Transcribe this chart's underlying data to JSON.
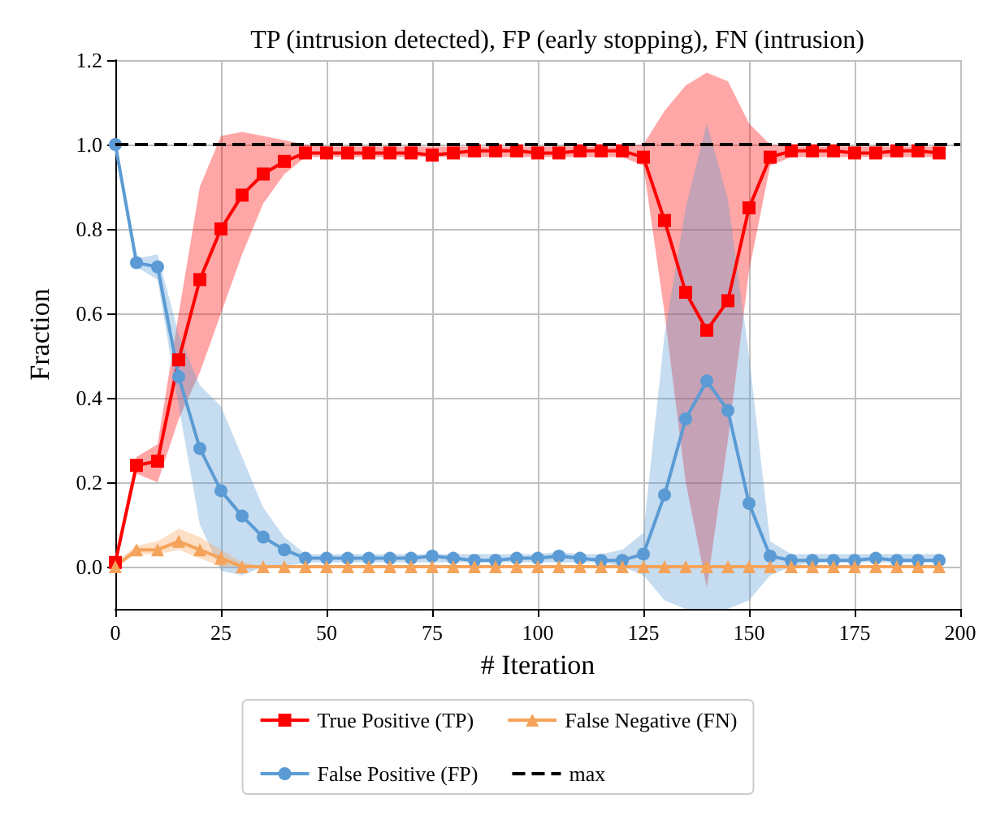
{
  "chart_data": {
    "type": "line",
    "title": "TP (intrusion detected), FP (early stopping), FN (intrusion)",
    "xlabel": "# Iteration",
    "ylabel": "Fraction",
    "x": [
      0,
      5,
      10,
      15,
      20,
      25,
      30,
      35,
      40,
      45,
      50,
      55,
      60,
      65,
      70,
      75,
      80,
      85,
      90,
      95,
      100,
      105,
      110,
      115,
      120,
      125,
      130,
      135,
      140,
      145,
      150,
      155,
      160,
      165,
      170,
      175,
      180,
      185,
      190,
      195
    ],
    "series": [
      {
        "name": "True Positive (TP)",
        "color": "#ff0000",
        "marker": "square",
        "values": [
          0.01,
          0.24,
          0.25,
          0.49,
          0.68,
          0.8,
          0.88,
          0.93,
          0.96,
          0.98,
          0.98,
          0.98,
          0.98,
          0.98,
          0.98,
          0.975,
          0.98,
          0.985,
          0.985,
          0.985,
          0.98,
          0.98,
          0.985,
          0.985,
          0.985,
          0.97,
          0.82,
          0.65,
          0.56,
          0.63,
          0.85,
          0.97,
          0.985,
          0.985,
          0.985,
          0.98,
          0.98,
          0.985,
          0.985,
          0.98
        ],
        "lower": [
          0,
          0.22,
          0.2,
          0.35,
          0.46,
          0.6,
          0.74,
          0.86,
          0.93,
          0.97,
          0.97,
          0.97,
          0.97,
          0.97,
          0.97,
          0.97,
          0.97,
          0.97,
          0.97,
          0.97,
          0.97,
          0.97,
          0.97,
          0.97,
          0.97,
          0.95,
          0.6,
          0.2,
          -0.05,
          0.3,
          0.7,
          0.95,
          0.97,
          0.97,
          0.97,
          0.97,
          0.97,
          0.97,
          0.97,
          0.97
        ],
        "upper": [
          0.03,
          0.26,
          0.29,
          0.6,
          0.9,
          1.02,
          1.03,
          1.02,
          1.01,
          1.0,
          0.995,
          0.995,
          0.995,
          0.995,
          0.995,
          0.995,
          0.995,
          0.995,
          0.995,
          0.995,
          0.995,
          0.995,
          0.995,
          0.995,
          0.995,
          1.0,
          1.08,
          1.14,
          1.17,
          1.15,
          1.05,
          1.0,
          0.995,
          0.995,
          0.995,
          0.995,
          0.995,
          0.995,
          0.995,
          0.995
        ]
      },
      {
        "name": "False Positive (FP)",
        "color": "#5b9bd5",
        "marker": "circle",
        "values": [
          1.0,
          0.72,
          0.71,
          0.45,
          0.28,
          0.18,
          0.12,
          0.07,
          0.04,
          0.02,
          0.02,
          0.02,
          0.02,
          0.02,
          0.02,
          0.025,
          0.02,
          0.015,
          0.015,
          0.02,
          0.02,
          0.025,
          0.02,
          0.015,
          0.015,
          0.03,
          0.17,
          0.35,
          0.44,
          0.37,
          0.15,
          0.025,
          0.015,
          0.015,
          0.015,
          0.015,
          0.02,
          0.015,
          0.015,
          0.015
        ],
        "lower": [
          0.99,
          0.71,
          0.68,
          0.38,
          0.1,
          -0.01,
          -0.02,
          0,
          0,
          0.01,
          0.01,
          0.01,
          0.01,
          0.01,
          0.01,
          0.01,
          0.01,
          0.01,
          0.01,
          0.01,
          0.01,
          0.01,
          0.01,
          0.01,
          0,
          -0.02,
          -0.08,
          -0.1,
          -0.1,
          -0.1,
          -0.08,
          -0.02,
          0,
          0.01,
          0.01,
          0.01,
          0.01,
          0.01,
          0.01,
          0.01
        ],
        "upper": [
          1.0,
          0.73,
          0.74,
          0.55,
          0.43,
          0.38,
          0.26,
          0.14,
          0.07,
          0.03,
          0.03,
          0.03,
          0.03,
          0.03,
          0.03,
          0.03,
          0.03,
          0.03,
          0.03,
          0.03,
          0.03,
          0.035,
          0.03,
          0.03,
          0.04,
          0.08,
          0.55,
          0.85,
          1.05,
          0.87,
          0.5,
          0.06,
          0.03,
          0.03,
          0.03,
          0.03,
          0.03,
          0.03,
          0.03,
          0.03
        ]
      },
      {
        "name": "False Negative (FN)",
        "color": "#f5a35a",
        "marker": "triangle",
        "values": [
          0,
          0.04,
          0.04,
          0.06,
          0.04,
          0.02,
          0,
          0,
          0,
          0,
          0,
          0,
          0,
          0,
          0,
          0,
          0,
          0,
          0,
          0,
          0,
          0,
          0,
          0,
          0,
          0,
          0,
          0,
          0,
          0,
          0,
          0,
          0,
          0,
          0,
          0,
          0,
          0,
          0,
          0
        ],
        "lower": [
          0,
          0.03,
          0.03,
          0.04,
          0.02,
          0,
          0,
          0,
          0,
          0,
          0,
          0,
          0,
          0,
          0,
          0,
          0,
          0,
          0,
          0,
          0,
          0,
          0,
          0,
          0,
          0,
          0,
          0,
          0,
          0,
          0,
          0,
          0,
          0,
          0,
          0,
          0,
          0,
          0,
          0
        ],
        "upper": [
          0.01,
          0.05,
          0.06,
          0.09,
          0.07,
          0.04,
          0.01,
          0,
          0,
          0,
          0,
          0,
          0,
          0,
          0,
          0,
          0,
          0,
          0,
          0,
          0,
          0,
          0,
          0,
          0,
          0,
          0,
          0,
          0,
          0,
          0,
          0,
          0,
          0,
          0,
          0,
          0,
          0,
          0,
          0
        ]
      }
    ],
    "ref_lines": [
      {
        "axis": "y",
        "value": 1.0,
        "label": "max",
        "color": "#000000",
        "line_style": "dashed"
      }
    ],
    "xlim": [
      0,
      200
    ],
    "xticks": [
      0,
      25,
      50,
      75,
      100,
      125,
      150,
      175,
      200
    ],
    "ylim": [
      -0.1,
      1.2
    ],
    "yticks": [
      {
        "value": 0,
        "label": "0.0"
      },
      {
        "value": 0.2,
        "label": "0.2"
      },
      {
        "value": 0.4,
        "label": "0.4"
      },
      {
        "value": 0.6,
        "label": "0.6"
      },
      {
        "value": 0.8,
        "label": "0.8"
      },
      {
        "value": 1,
        "label": "1.0"
      },
      {
        "value": 1.2,
        "label": "1.2"
      }
    ],
    "grid": true,
    "legend": "bottom"
  }
}
